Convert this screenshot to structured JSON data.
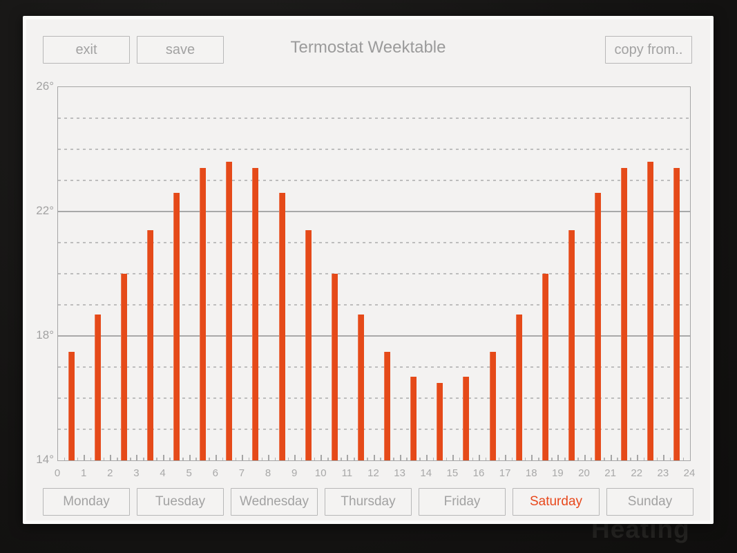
{
  "header": {
    "title": "Termostat Weektable",
    "exit_label": "exit",
    "save_label": "save",
    "copy_from_label": "copy from.."
  },
  "chart_data": {
    "type": "bar",
    "title": "Termostat Weektable",
    "x": [
      0,
      1,
      2,
      3,
      4,
      5,
      6,
      7,
      8,
      9,
      10,
      11,
      12,
      13,
      14,
      15,
      16,
      17,
      18,
      19,
      20,
      21,
      22,
      23
    ],
    "values": [
      17.5,
      18.7,
      20,
      21.4,
      22.6,
      23.4,
      23.6,
      23.4,
      22.6,
      21.4,
      20,
      18.7,
      17.5,
      16.7,
      16.5,
      16.7,
      17.5,
      18.7,
      20,
      21.4,
      22.6,
      23.4,
      23.6,
      23.4
    ],
    "xlim": [
      0,
      24
    ],
    "ylim": [
      14,
      26
    ],
    "x_tick_labels": [
      "0",
      "1",
      "2",
      "3",
      "4",
      "5",
      "6",
      "7",
      "8",
      "9",
      "10",
      "11",
      "12",
      "13",
      "14",
      "15",
      "16",
      "17",
      "18",
      "19",
      "20",
      "21",
      "22",
      "23",
      "24"
    ],
    "y_major_ticks": [
      26,
      22,
      18,
      14
    ],
    "y_tick_labels": [
      "26°",
      "22°",
      "18°",
      "14°"
    ],
    "grid": {
      "solid_every_deg": 4,
      "dashed_every_deg": 1,
      "style": "horizontal"
    },
    "bar_color": "#e54a19",
    "legend": "none"
  },
  "days": {
    "selected": "Saturday",
    "items": [
      {
        "label": "Monday",
        "selected": false
      },
      {
        "label": "Tuesday",
        "selected": false
      },
      {
        "label": "Wednesday",
        "selected": false
      },
      {
        "label": "Thursday",
        "selected": false
      },
      {
        "label": "Friday",
        "selected": false
      },
      {
        "label": "Saturday",
        "selected": true
      },
      {
        "label": "Sunday",
        "selected": false
      }
    ]
  },
  "watermark": {
    "text": "Heating"
  },
  "colors": {
    "accent_orange": "#e54a19",
    "window_bg": "#f3f2f1",
    "window_frame": "#fbfbfa",
    "page_bg": "#151413",
    "control_border": "#b7b7b7",
    "text_gray": "#a2a2a2",
    "grid_solid": "#a8a8a8",
    "grid_dashed": "#bdbdbd"
  }
}
